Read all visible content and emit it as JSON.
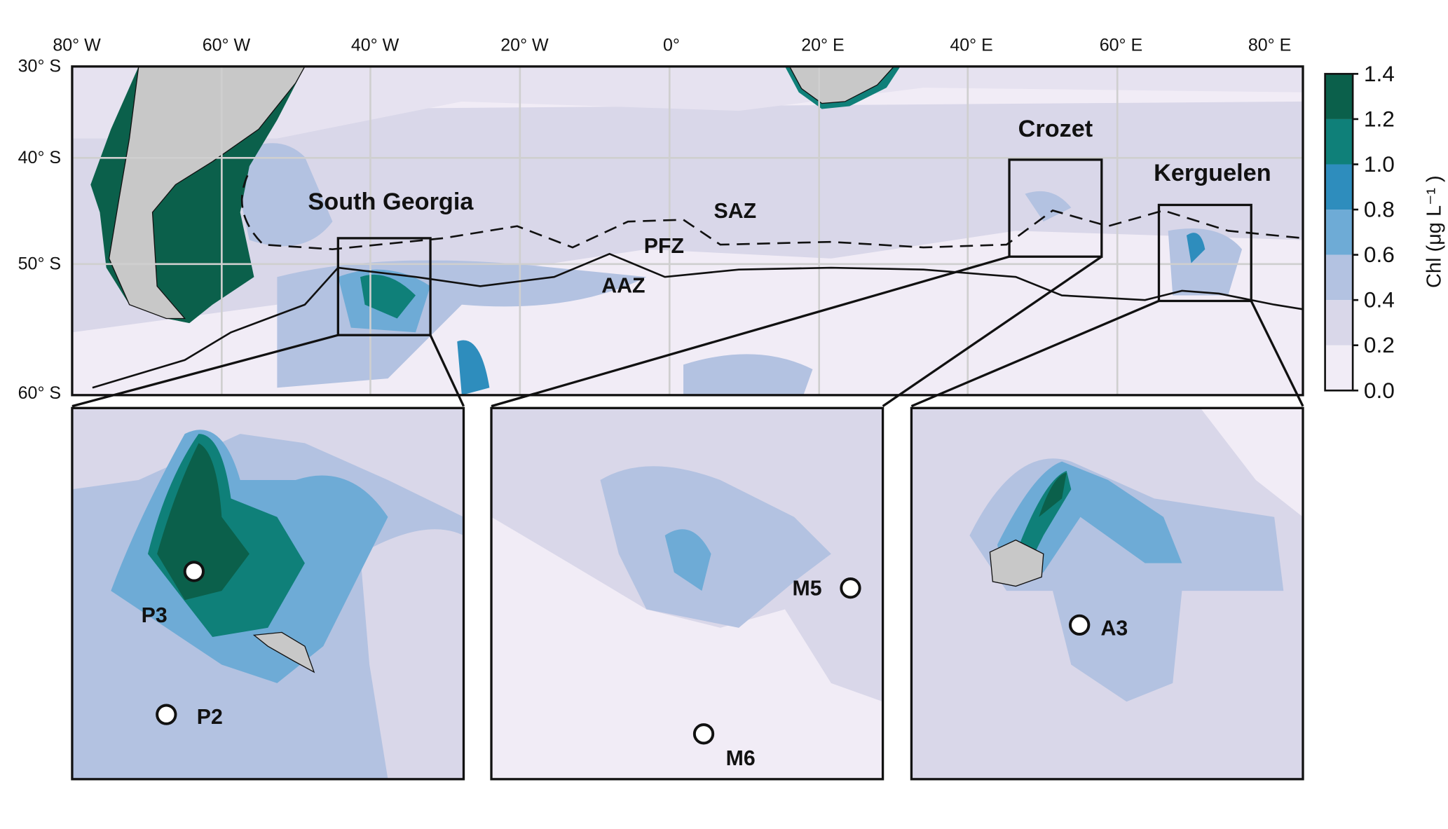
{
  "map": {
    "longitude_labels": [
      "80° W",
      "60° W",
      "40° W",
      "20° W",
      "0°",
      "20° E",
      "40° E",
      "60° E",
      "80° E"
    ],
    "latitude_labels": [
      "30° S",
      "40° S",
      "50° S",
      "60° S"
    ],
    "regions": [
      "South Georgia",
      "Crozet",
      "Kerguelen"
    ],
    "zones": [
      "SAZ",
      "PFZ",
      "AAZ"
    ],
    "stations": [
      "P3",
      "P2",
      "M5",
      "M6",
      "A3"
    ]
  },
  "colorbar": {
    "label": "Chl (μg L⁻¹ )",
    "lim": [
      0,
      1.4
    ],
    "ticks": [
      {
        "value": 0,
        "label": "0.0"
      },
      0.2,
      0.4,
      0.6,
      0.8,
      {
        "value": 1,
        "label": "1.0"
      },
      1.2,
      1.4
    ],
    "colors": [
      "#f1ecf6",
      "#d9d7e9",
      "#b3c2e1",
      "#6eabd6",
      "#2e8dbd",
      "#0f8079",
      "#0b604b"
    ]
  }
}
